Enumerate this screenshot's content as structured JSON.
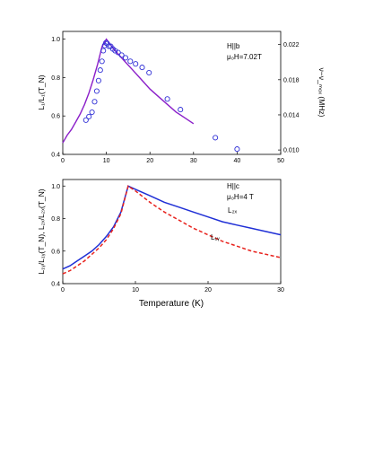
{
  "chart_data": [
    {
      "type": "scatter",
      "annotation": [
        "H||b",
        "μ₀H=7.02T"
      ],
      "xlabel": "",
      "ylabel": "L₁/L₁(T_N)",
      "y2label": "ν−ν_ₘₒₓ (MHz)",
      "xlim": [
        0,
        50
      ],
      "ylim": [
        0.4,
        1.04
      ],
      "y2lim": [
        0.0095,
        0.0235
      ],
      "xticks": [
        "0",
        "10",
        "20",
        "30",
        "40",
        "50"
      ],
      "yticks": [
        "0.4",
        "0.6",
        "0.8",
        "1.0"
      ],
      "y2ticks": [
        "0.010",
        "0.014",
        "0.018",
        "0.022"
      ],
      "grid": false,
      "colors": {
        "curve": "#8b1fc9",
        "points": "#2f2fd6"
      },
      "series": [
        {
          "kind": "line",
          "axis": "left",
          "x": [
            0,
            1,
            2,
            3,
            4,
            5,
            6,
            7,
            8,
            9,
            10,
            12,
            14,
            16,
            18,
            20,
            22,
            24,
            26,
            28,
            30
          ],
          "y": [
            0.46,
            0.5,
            0.53,
            0.57,
            0.61,
            0.66,
            0.72,
            0.79,
            0.87,
            0.96,
            1.0,
            0.94,
            0.89,
            0.84,
            0.79,
            0.74,
            0.7,
            0.66,
            0.62,
            0.59,
            0.56
          ]
        },
        {
          "kind": "points",
          "axis": "right",
          "x": [
            5.3,
            6.0,
            6.7,
            7.3,
            7.8,
            8.2,
            8.6,
            9.0,
            9.3,
            9.6,
            9.9,
            10.2,
            10.6,
            11.0,
            11.5,
            12.0,
            12.7,
            13.5,
            14.4,
            15.5,
            16.7,
            18.2,
            19.8,
            24.0,
            27.0,
            35.0,
            40.0
          ],
          "y": [
            0.0134,
            0.0138,
            0.0143,
            0.0155,
            0.0167,
            0.0179,
            0.0191,
            0.0201,
            0.0213,
            0.0219,
            0.0222,
            0.0221,
            0.0218,
            0.0218,
            0.0215,
            0.0213,
            0.0211,
            0.0208,
            0.0205,
            0.0201,
            0.0198,
            0.0194,
            0.0188,
            0.0158,
            0.0146,
            0.0114,
            0.0101
          ]
        }
      ]
    },
    {
      "type": "line",
      "annotation": [
        "H||c",
        "μ₀H=4 T"
      ],
      "xlabel": "Temperature (K)",
      "ylabel": "L₁ᵧ/L₁ᵧ(T_N), L₂ₓ/L₂ₓ(T_N)",
      "xlim": [
        0,
        30
      ],
      "ylim": [
        0.4,
        1.04
      ],
      "xticks": [
        "0",
        "10",
        "20",
        "30"
      ],
      "yticks": [
        "0.4",
        "0.6",
        "0.8",
        "1.0"
      ],
      "grid": false,
      "series": [
        {
          "name": "L₂ₓ",
          "color": "#1f2fd6",
          "dash": "solid",
          "x": [
            0,
            1,
            2,
            3,
            4,
            5,
            6,
            7,
            8,
            9,
            10,
            12,
            14,
            16,
            18,
            20,
            22,
            24,
            26,
            28,
            30
          ],
          "y": [
            0.49,
            0.51,
            0.54,
            0.57,
            0.6,
            0.64,
            0.69,
            0.75,
            0.84,
            1.0,
            0.98,
            0.94,
            0.9,
            0.87,
            0.84,
            0.81,
            0.78,
            0.76,
            0.74,
            0.72,
            0.7
          ]
        },
        {
          "name": "L₁ᵧ",
          "color": "#e8231e",
          "dash": "dashed",
          "x": [
            0,
            1,
            2,
            3,
            4,
            5,
            6,
            7,
            8,
            9,
            10,
            12,
            14,
            16,
            18,
            20,
            22,
            24,
            26,
            28,
            30
          ],
          "y": [
            0.46,
            0.48,
            0.51,
            0.54,
            0.58,
            0.62,
            0.67,
            0.74,
            0.83,
            1.0,
            0.97,
            0.9,
            0.84,
            0.79,
            0.74,
            0.7,
            0.66,
            0.63,
            0.6,
            0.58,
            0.56
          ]
        }
      ]
    }
  ]
}
